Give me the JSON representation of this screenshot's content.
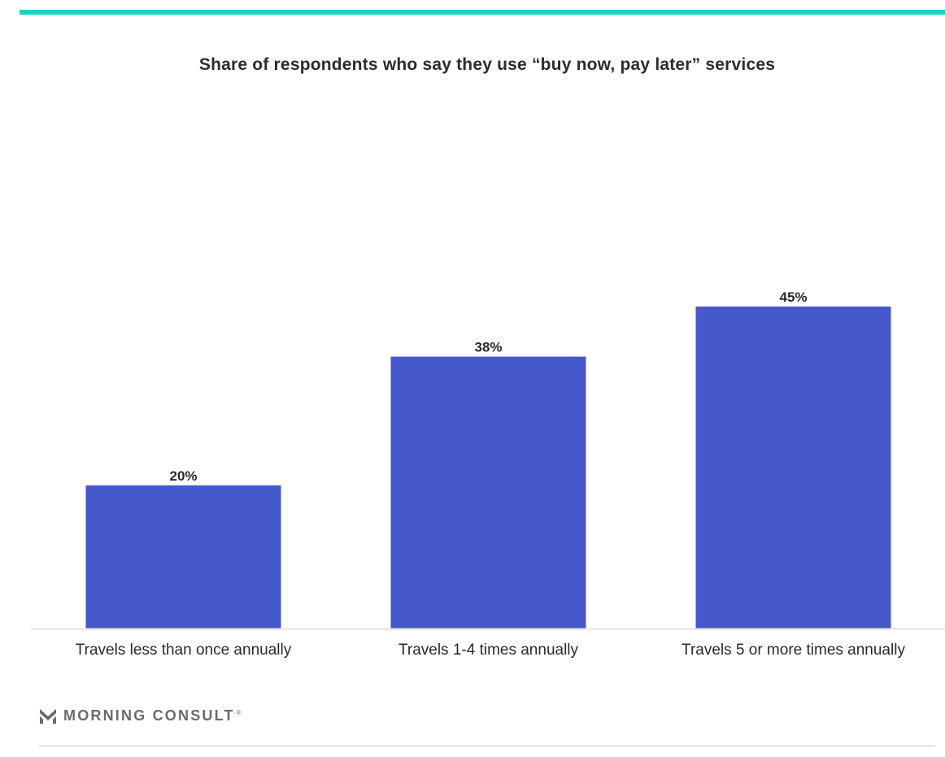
{
  "colors": {
    "accent": "#19d3c5",
    "bar": "#4558cc",
    "axis": "#e3e3e3",
    "text": "#2a2a2a",
    "logo": "#6a6a6a"
  },
  "footer": {
    "brand": "MORNING CONSULT",
    "reg_mark": "®",
    "logo_icon": "morning-consult-m-icon"
  },
  "chart_data": {
    "type": "bar",
    "title": "Share of respondents who say they use “buy now, pay later” services",
    "categories": [
      "Travels less than once annually",
      "Travels 1-4 times annually",
      "Travels 5 or more times annually"
    ],
    "values": [
      20,
      38,
      45
    ],
    "value_labels": [
      "20%",
      "38%",
      "45%"
    ],
    "value_unit": "%",
    "ylim": [
      0,
      90
    ],
    "grid": false,
    "legend": "none"
  }
}
